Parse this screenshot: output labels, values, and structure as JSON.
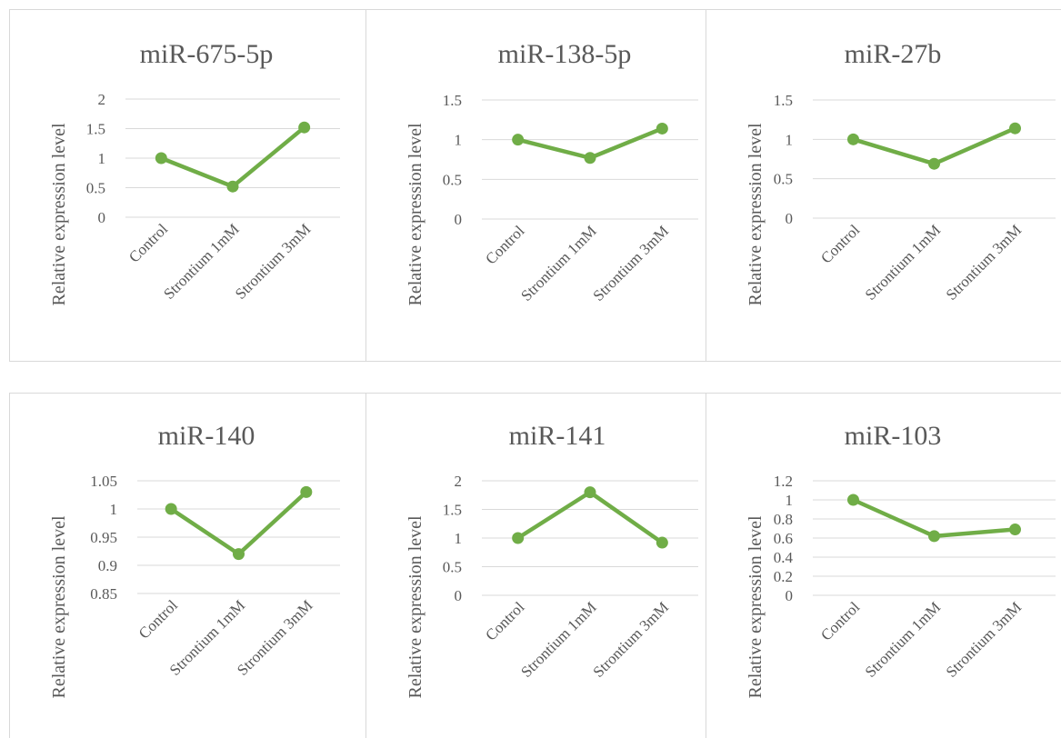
{
  "chart_data": [
    {
      "type": "line",
      "title": "miR-675-5p",
      "ylabel": "Relative expression level",
      "categories": [
        "Control",
        "Strontium 1mM",
        "Strontium 3mM"
      ],
      "values": [
        1.0,
        0.52,
        1.52
      ],
      "yticks": [
        "0",
        "0.5",
        "1",
        "1.5",
        "2"
      ],
      "ylim": [
        0,
        2
      ],
      "grid": true
    },
    {
      "type": "line",
      "title": "miR-138-5p",
      "ylabel": "Relative expression level",
      "categories": [
        "Control",
        "Strontium 1mM",
        "Strontium 3mM"
      ],
      "values": [
        1.0,
        0.77,
        1.14
      ],
      "yticks": [
        "0",
        "0.5",
        "1",
        "1.5"
      ],
      "ylim": [
        0,
        1.5
      ],
      "grid": true
    },
    {
      "type": "line",
      "title": "miR-27b",
      "ylabel": "Relative expression level",
      "categories": [
        "Control",
        "Strontium 1mM",
        "Strontium 3mM"
      ],
      "values": [
        1.0,
        0.69,
        1.14
      ],
      "yticks": [
        "0",
        "0.5",
        "1",
        "1.5"
      ],
      "ylim": [
        0,
        1.5
      ],
      "grid": true
    },
    {
      "type": "line",
      "title": "miR-140",
      "ylabel": "Relative expression level",
      "categories": [
        "Control",
        "Strontium 1mM",
        "Strontium 3mM"
      ],
      "values": [
        1.0,
        0.92,
        1.03
      ],
      "yticks": [
        "0.85",
        "0.9",
        "0.95",
        "1",
        "1.05"
      ],
      "ylim": [
        0.85,
        1.05
      ],
      "grid": true
    },
    {
      "type": "line",
      "title": "miR-141",
      "ylabel": "Relative expression level",
      "categories": [
        "Control",
        "Strontium 1mM",
        "Strontium 3mM"
      ],
      "values": [
        1.0,
        1.8,
        0.92
      ],
      "yticks": [
        "0",
        "0.5",
        "1",
        "1.5",
        "2"
      ],
      "ylim": [
        0,
        2
      ],
      "grid": true
    },
    {
      "type": "line",
      "title": "miR-103",
      "ylabel": "Relative expression level",
      "categories": [
        "Control",
        "Strontium 1mM",
        "Strontium 3mM"
      ],
      "values": [
        1.0,
        0.62,
        0.69
      ],
      "yticks": [
        "0",
        "0.2",
        "0.4",
        "0.6",
        "0.8",
        "1",
        "1.2"
      ],
      "ylim": [
        0,
        1.2
      ],
      "grid": true
    }
  ],
  "colors": {
    "series": "#70ad47",
    "grid": "#d9d9d9",
    "text": "#595959",
    "border": "#d9d9d9"
  }
}
